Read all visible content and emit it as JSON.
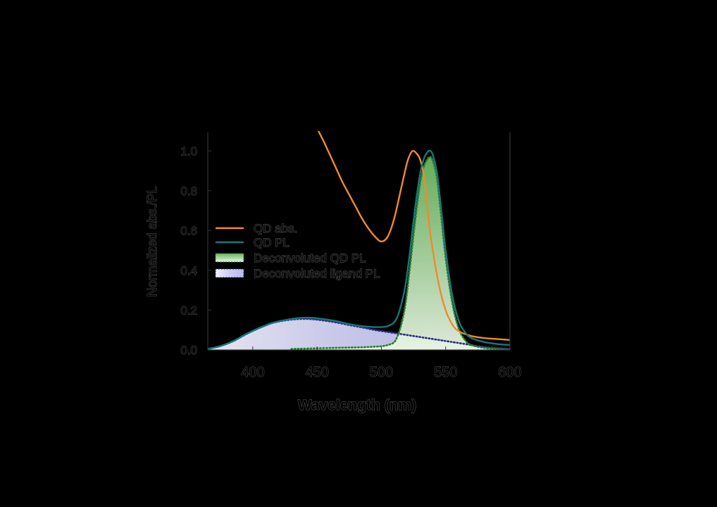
{
  "chart_data": {
    "type": "line",
    "xlabel": "Wavelength (nm)",
    "ylabel": "Normalized abs./PL",
    "xlim": [
      365,
      600
    ],
    "ylim": [
      0,
      1.1
    ],
    "xticks": [
      400,
      450,
      500,
      550,
      600
    ],
    "yticks": [
      0.0,
      0.2,
      0.4,
      0.6,
      0.8,
      1.0
    ],
    "xtick_labels": [
      "400",
      "450",
      "500",
      "550",
      "600"
    ],
    "ytick_labels": [
      "0.0",
      "0.2",
      "0.4",
      "0.6",
      "0.8",
      "1.0"
    ],
    "grid": false,
    "legend_position": "center-left",
    "series": [
      {
        "name": "QD abs.",
        "style": "line",
        "color": "#f08a2c",
        "x": [
          451,
          455,
          460,
          465,
          470,
          475,
          480,
          485,
          490,
          495,
          500,
          505,
          510,
          515,
          520,
          523,
          525,
          527,
          530,
          533,
          535,
          537,
          540,
          545,
          550,
          555,
          560,
          570,
          580,
          590,
          600
        ],
        "y": [
          1.1,
          1.05,
          0.98,
          0.91,
          0.84,
          0.78,
          0.72,
          0.66,
          0.61,
          0.57,
          0.545,
          0.57,
          0.66,
          0.8,
          0.94,
          0.99,
          1.0,
          0.99,
          0.96,
          0.88,
          0.78,
          0.64,
          0.5,
          0.32,
          0.2,
          0.13,
          0.095,
          0.07,
          0.06,
          0.055,
          0.05
        ]
      },
      {
        "name": "QD PL",
        "style": "line",
        "color": "#17777a",
        "x": [
          365,
          375,
          385,
          395,
          405,
          415,
          425,
          435,
          445,
          455,
          465,
          475,
          485,
          495,
          505,
          512,
          518,
          522,
          526,
          530,
          533,
          536,
          538,
          540,
          543,
          546,
          550,
          555,
          560,
          565,
          570,
          580,
          590,
          600
        ],
        "y": [
          0.005,
          0.02,
          0.045,
          0.08,
          0.11,
          0.135,
          0.15,
          0.16,
          0.162,
          0.155,
          0.145,
          0.13,
          0.12,
          0.115,
          0.12,
          0.16,
          0.3,
          0.48,
          0.7,
          0.88,
          0.96,
          0.995,
          1.0,
          0.98,
          0.9,
          0.74,
          0.5,
          0.28,
          0.15,
          0.09,
          0.06,
          0.04,
          0.03,
          0.025
        ]
      },
      {
        "name": "Deconvoluted QD PL",
        "style": "filled-dotted",
        "color": "#2e7d32",
        "fill": "#a9d9a0",
        "x": [
          430,
          460,
          490,
          505,
          512,
          518,
          522,
          526,
          530,
          533,
          536,
          538,
          540,
          543,
          546,
          550,
          555,
          560,
          565,
          570,
          580,
          590,
          600
        ],
        "y": [
          0.005,
          0.01,
          0.015,
          0.025,
          0.06,
          0.2,
          0.4,
          0.63,
          0.83,
          0.92,
          0.96,
          0.97,
          0.95,
          0.87,
          0.7,
          0.46,
          0.24,
          0.11,
          0.05,
          0.025,
          0.01,
          0.005,
          0.002
        ]
      },
      {
        "name": "Deconvoluted ligand PL",
        "style": "filled-dotted",
        "color": "#2b2f8a",
        "fill": "#c8c8f4",
        "x": [
          365,
          375,
          385,
          395,
          405,
          415,
          425,
          435,
          445,
          455,
          465,
          475,
          485,
          495,
          505,
          515,
          525,
          535,
          545,
          555,
          565,
          575,
          585,
          600
        ],
        "y": [
          0.005,
          0.02,
          0.045,
          0.08,
          0.11,
          0.135,
          0.148,
          0.155,
          0.155,
          0.148,
          0.138,
          0.125,
          0.113,
          0.1,
          0.09,
          0.08,
          0.07,
          0.06,
          0.05,
          0.04,
          0.03,
          0.02,
          0.012,
          0.005
        ]
      }
    ]
  }
}
